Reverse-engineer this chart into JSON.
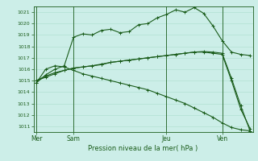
{
  "title": "Pression niveau de la mer( hPa )",
  "background_color": "#cceee8",
  "grid_color": "#aaddcc",
  "line_color": "#1a5c1a",
  "ylim": [
    1010.5,
    1021.5
  ],
  "yticks": [
    1011,
    1012,
    1013,
    1014,
    1015,
    1016,
    1017,
    1018,
    1019,
    1020,
    1021
  ],
  "day_labels": [
    "Mer",
    "Sam",
    "Jeu",
    "Ven"
  ],
  "day_positions": [
    0,
    4,
    14,
    20
  ],
  "xlim": [
    -0.3,
    23.3
  ],
  "series1_x": [
    0,
    1,
    2,
    3,
    4,
    5,
    6,
    7,
    8,
    9,
    10,
    11,
    12,
    13,
    14,
    15,
    16,
    17,
    18,
    19,
    20,
    21,
    22,
    23
  ],
  "series1_y": [
    1014.8,
    1015.5,
    1016.0,
    1016.3,
    1018.8,
    1019.1,
    1019.0,
    1019.4,
    1019.5,
    1019.2,
    1019.3,
    1019.9,
    1020.0,
    1020.5,
    1020.8,
    1021.2,
    1021.0,
    1021.4,
    1020.9,
    1019.8,
    1018.5,
    1017.5,
    1017.3,
    1017.2
  ],
  "series2_x": [
    0,
    1,
    2,
    3,
    4,
    5,
    6,
    7,
    8,
    9,
    10,
    11,
    12,
    13,
    14,
    15,
    16,
    17,
    18,
    19,
    20,
    21,
    22,
    23
  ],
  "series2_y": [
    1015.0,
    1015.4,
    1015.7,
    1015.9,
    1016.1,
    1016.2,
    1016.3,
    1016.4,
    1016.6,
    1016.7,
    1016.8,
    1016.9,
    1017.0,
    1017.1,
    1017.2,
    1017.3,
    1017.4,
    1017.5,
    1017.5,
    1017.4,
    1017.3,
    1015.0,
    1012.5,
    1010.8
  ],
  "series3_x": [
    0,
    1,
    2,
    3,
    4,
    5,
    6,
    7,
    8,
    9,
    10,
    11,
    12,
    13,
    14,
    15,
    16,
    17,
    18,
    19,
    20,
    21,
    22,
    23
  ],
  "series3_y": [
    1015.0,
    1015.3,
    1015.6,
    1015.9,
    1016.1,
    1016.2,
    1016.3,
    1016.45,
    1016.6,
    1016.7,
    1016.8,
    1016.9,
    1017.0,
    1017.1,
    1017.2,
    1017.3,
    1017.4,
    1017.5,
    1017.55,
    1017.5,
    1017.4,
    1015.2,
    1012.8,
    1010.6
  ],
  "series4_x": [
    0,
    1,
    2,
    3,
    4,
    5,
    6,
    7,
    8,
    9,
    10,
    11,
    12,
    13,
    14,
    15,
    16,
    17,
    18,
    19,
    20,
    21,
    22,
    23
  ],
  "series4_y": [
    1014.8,
    1016.0,
    1016.3,
    1016.2,
    1015.9,
    1015.6,
    1015.4,
    1015.2,
    1015.0,
    1014.8,
    1014.6,
    1014.4,
    1014.2,
    1013.9,
    1013.6,
    1013.3,
    1013.0,
    1012.6,
    1012.2,
    1011.8,
    1011.3,
    1010.9,
    1010.7,
    1010.6
  ]
}
